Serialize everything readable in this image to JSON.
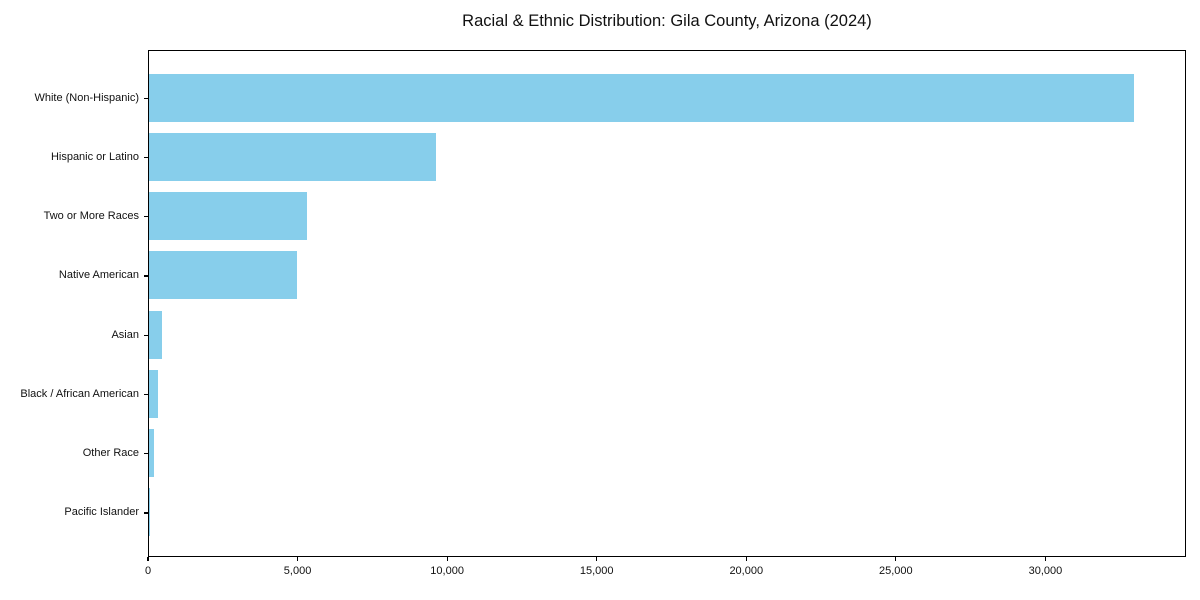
{
  "page": {
    "background": "#ffffff",
    "text_color": "#111111",
    "frame_color": "#000000"
  },
  "chart_data": {
    "type": "bar",
    "orientation": "horizontal",
    "title": "Racial & Ethnic Distribution: Gila County, Arizona (2024)",
    "xlabel": "",
    "ylabel": "",
    "categories": [
      "White (Non-Hispanic)",
      "Hispanic or Latino",
      "Two or More Races",
      "Native American",
      "Asian",
      "Black / African American",
      "Other Race",
      "Pacific Islander"
    ],
    "values": [
      33000,
      9600,
      5300,
      4950,
      430,
      290,
      160,
      30
    ],
    "bar_color": "#87CEEB",
    "xlim": [
      0,
      34700
    ],
    "xticks": [
      {
        "value": 0,
        "label": "0"
      },
      {
        "value": 5000,
        "label": "5,000"
      },
      {
        "value": 10000,
        "label": "10,000"
      },
      {
        "value": 15000,
        "label": "15,000"
      },
      {
        "value": 20000,
        "label": "20,000"
      },
      {
        "value": 25000,
        "label": "25,000"
      },
      {
        "value": 30000,
        "label": "30,000"
      }
    ],
    "grid": false,
    "legend": null
  }
}
